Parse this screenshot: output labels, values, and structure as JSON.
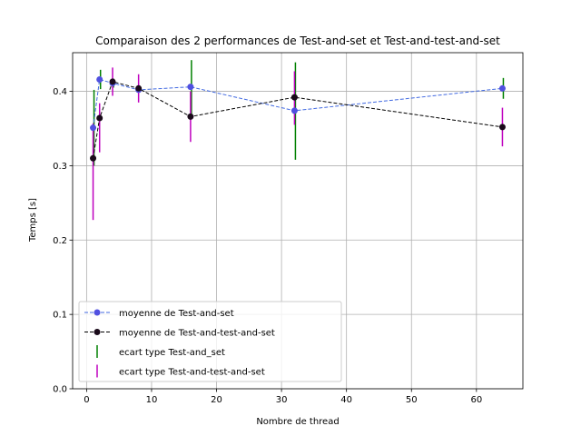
{
  "chart_data": {
    "type": "line",
    "title": "Comparaison des 2 performances de Test-and-set et Test-and-test-and-set",
    "xlabel": "Nombre de thread",
    "ylabel": "Temps [s]",
    "xlim": [
      -2.15,
      67.15
    ],
    "ylim": [
      0,
      0.452
    ],
    "xticks": [
      0,
      10,
      20,
      30,
      40,
      50,
      60
    ],
    "yticks": [
      0.0,
      0.1,
      0.2,
      0.3,
      0.4
    ],
    "ytick_labels": [
      "0.0",
      "0.1",
      "0.2",
      "0.3",
      "0.4"
    ],
    "grid": true,
    "legend_position": "lower-left",
    "x": [
      1,
      2,
      4,
      8,
      16,
      32,
      64
    ],
    "series": [
      {
        "name": "moyenne de Test-and-set",
        "values": [
          0.351,
          0.416,
          0.411,
          0.402,
          0.406,
          0.374,
          0.404
        ],
        "color": "#4169e1",
        "marker_color": "#5050e0",
        "style": "dashed"
      },
      {
        "name": "moyenne de Test-and-test-and-set",
        "values": [
          0.31,
          0.364,
          0.413,
          0.404,
          0.366,
          0.392,
          0.352
        ],
        "color": "#000000",
        "marker_color": "#1a0a1a",
        "style": "dashed"
      }
    ],
    "error_bars": [
      {
        "name": "ecart type Test-and_set",
        "color": "#008000",
        "offset": 1,
        "low": [
          0.3,
          0.403,
          0.405,
          0.399,
          0.366,
          0.308,
          0.39
        ],
        "high": [
          0.402,
          0.429,
          0.417,
          0.405,
          0.442,
          0.439,
          0.418
        ]
      },
      {
        "name": "ecart type Test-and-test-and-set",
        "color": "#bf00bf",
        "offset": 0,
        "low": [
          0.227,
          0.318,
          0.394,
          0.385,
          0.332,
          0.355,
          0.326
        ],
        "high": [
          0.357,
          0.384,
          0.432,
          0.423,
          0.4,
          0.427,
          0.378
        ]
      }
    ]
  }
}
